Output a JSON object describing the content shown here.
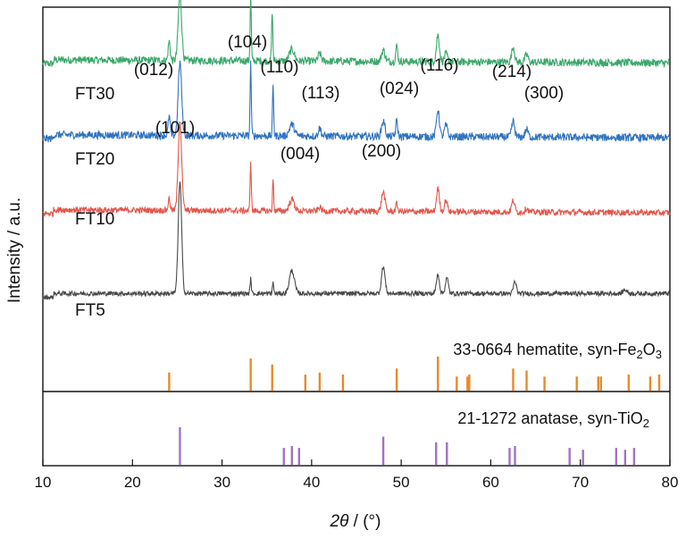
{
  "chart_data": {
    "type": "line",
    "xlabel_italic": "2θ",
    "xlabel_unit": " / (°)",
    "ylabel": "Intensity / a.u.",
    "xlim": [
      10,
      80
    ],
    "xticks": [
      10,
      20,
      30,
      40,
      50,
      60,
      70,
      80
    ],
    "grid": false,
    "series": [
      {
        "name": "FT30",
        "color": "#3aa86b",
        "baseline": 0.855,
        "noise": 0.01,
        "tilt": 0.004,
        "peaks": [
          [
            24.1,
            0.05,
            0.2
          ],
          [
            25.3,
            0.17,
            0.35
          ],
          [
            33.2,
            0.17,
            0.12
          ],
          [
            35.6,
            0.13,
            0.12
          ],
          [
            37.8,
            0.03,
            0.5
          ],
          [
            40.9,
            0.02,
            0.3
          ],
          [
            48.0,
            0.03,
            0.35
          ],
          [
            49.5,
            0.04,
            0.2
          ],
          [
            54.1,
            0.07,
            0.3
          ],
          [
            55.0,
            0.02,
            0.3
          ],
          [
            62.5,
            0.04,
            0.3
          ],
          [
            64.0,
            0.02,
            0.3
          ]
        ]
      },
      {
        "name": "FT20",
        "color": "#2f73bf",
        "baseline": 0.66,
        "noise": 0.01,
        "tilt": 0.004,
        "peaks": [
          [
            24.1,
            0.05,
            0.2
          ],
          [
            25.3,
            0.19,
            0.35
          ],
          [
            33.2,
            0.19,
            0.12
          ],
          [
            35.7,
            0.13,
            0.12
          ],
          [
            37.8,
            0.03,
            0.5
          ],
          [
            40.9,
            0.02,
            0.3
          ],
          [
            48.0,
            0.04,
            0.35
          ],
          [
            49.5,
            0.04,
            0.2
          ],
          [
            54.1,
            0.07,
            0.3
          ],
          [
            55.0,
            0.03,
            0.3
          ],
          [
            62.5,
            0.04,
            0.3
          ],
          [
            64.0,
            0.02,
            0.3
          ]
        ]
      },
      {
        "name": "FT10",
        "color": "#e2574c",
        "baseline": 0.465,
        "noise": 0.008,
        "tilt": 0.004,
        "peaks": [
          [
            24.1,
            0.03,
            0.2
          ],
          [
            25.3,
            0.23,
            0.35
          ],
          [
            33.2,
            0.13,
            0.12
          ],
          [
            35.7,
            0.08,
            0.12
          ],
          [
            37.8,
            0.03,
            0.5
          ],
          [
            40.9,
            0.01,
            0.3
          ],
          [
            48.0,
            0.05,
            0.35
          ],
          [
            49.5,
            0.02,
            0.2
          ],
          [
            54.1,
            0.06,
            0.3
          ],
          [
            55.0,
            0.03,
            0.3
          ],
          [
            62.5,
            0.03,
            0.3
          ],
          [
            64.0,
            0.01,
            0.3
          ]
        ]
      },
      {
        "name": "FT5",
        "color": "#4a4a4a",
        "baseline": 0.255,
        "noise": 0.006,
        "tilt": 0.0,
        "peaks": [
          [
            25.3,
            0.29,
            0.35
          ],
          [
            33.2,
            0.04,
            0.12
          ],
          [
            35.7,
            0.03,
            0.12
          ],
          [
            37.8,
            0.06,
            0.5
          ],
          [
            48.0,
            0.07,
            0.35
          ],
          [
            54.1,
            0.05,
            0.3
          ],
          [
            55.1,
            0.04,
            0.3
          ],
          [
            62.7,
            0.03,
            0.3
          ],
          [
            75.0,
            0.01,
            0.4
          ]
        ]
      }
    ],
    "references": [
      {
        "title_html": "33-0664 hematite, syn-Fe<sub>2</sub>O<sub>3</sub>",
        "title_prefix": "33-0664 hematite, syn-Fe",
        "title_sub1": "2",
        "title_mid": "O",
        "title_sub2": "3",
        "color": "#e8892c",
        "lines": [
          [
            24.1,
            0.45
          ],
          [
            33.2,
            0.8
          ],
          [
            35.6,
            0.65
          ],
          [
            39.3,
            0.4
          ],
          [
            40.9,
            0.45
          ],
          [
            43.5,
            0.4
          ],
          [
            49.5,
            0.55
          ],
          [
            54.1,
            0.85
          ],
          [
            56.2,
            0.35
          ],
          [
            57.4,
            0.35
          ],
          [
            57.6,
            0.4
          ],
          [
            62.5,
            0.55
          ],
          [
            64.0,
            0.5
          ],
          [
            66.0,
            0.35
          ],
          [
            69.6,
            0.35
          ],
          [
            72.0,
            0.35
          ],
          [
            72.3,
            0.35
          ],
          [
            75.4,
            0.4
          ],
          [
            77.8,
            0.35
          ],
          [
            78.8,
            0.4
          ]
        ]
      },
      {
        "title_prefix": "21-1272 anatase, syn-TiO",
        "title_sub1": "2",
        "color": "#a272c0",
        "lines": [
          [
            25.3,
            1.0
          ],
          [
            36.9,
            0.45
          ],
          [
            37.8,
            0.5
          ],
          [
            38.6,
            0.45
          ],
          [
            48.0,
            0.75
          ],
          [
            53.9,
            0.6
          ],
          [
            55.1,
            0.6
          ],
          [
            62.1,
            0.45
          ],
          [
            62.7,
            0.5
          ],
          [
            68.8,
            0.45
          ],
          [
            70.3,
            0.4
          ],
          [
            74.0,
            0.45
          ],
          [
            75.0,
            0.4
          ],
          [
            76.0,
            0.45
          ]
        ]
      }
    ],
    "annotations": [
      {
        "text": "(012)",
        "x": 24.1
      },
      {
        "text": "(104)",
        "x": 33.2
      },
      {
        "text": "(110)",
        "x": 35.8
      },
      {
        "text": "(113)",
        "x": 40.9
      },
      {
        "text": "(024)",
        "x": 49.5
      },
      {
        "text": "(116)",
        "x": 54.1
      },
      {
        "text": "(214)",
        "x": 62.5
      },
      {
        "text": "(300)",
        "x": 64.0
      },
      {
        "text": "(101)",
        "x": 25.3
      },
      {
        "text": "(004)",
        "x": 37.8
      },
      {
        "text": "(200)",
        "x": 48.0
      }
    ]
  }
}
